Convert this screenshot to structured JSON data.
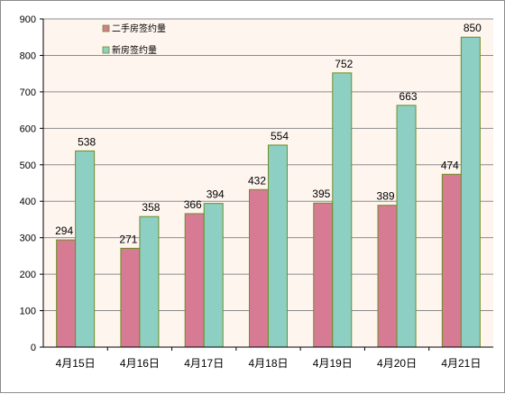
{
  "chart_data": {
    "type": "bar",
    "categories": [
      "4月15日",
      "4月16日",
      "4月17日",
      "4月18日",
      "4月19日",
      "4月20日",
      "4月21日"
    ],
    "series": [
      {
        "name": "二手房签约量",
        "values": [
          294,
          271,
          366,
          432,
          395,
          389,
          474
        ],
        "color": "#d77a94"
      },
      {
        "name": "新房签约量",
        "values": [
          538,
          358,
          394,
          554,
          752,
          663,
          850
        ],
        "color": "#8ecfc3"
      }
    ],
    "ylim": [
      0,
      900
    ],
    "yticks": [
      0,
      100,
      200,
      300,
      400,
      500,
      600,
      700,
      800,
      900
    ],
    "grid": true,
    "legend_position": "top-left inside plot",
    "plot_background": "#fef5ef",
    "bar_border": "#6b8e23",
    "title": "",
    "xlabel": "",
    "ylabel": ""
  }
}
